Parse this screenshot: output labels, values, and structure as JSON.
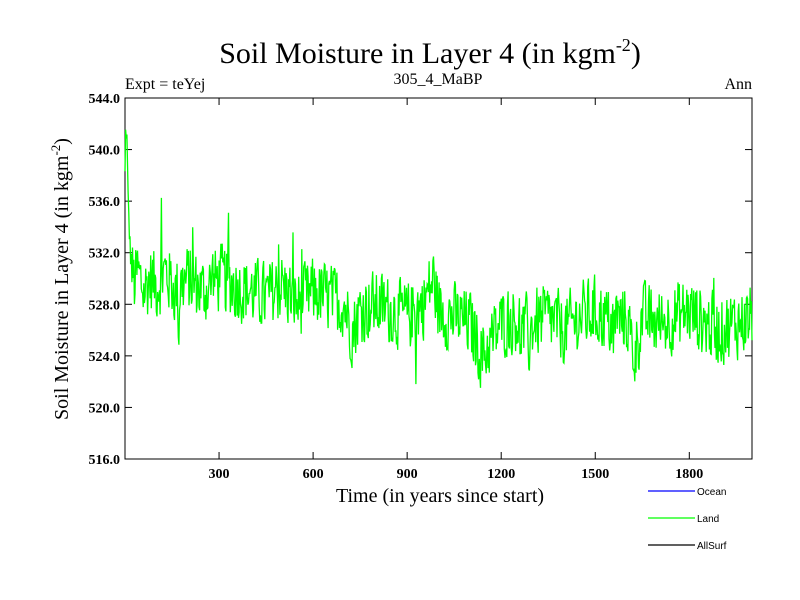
{
  "chart_data": {
    "type": "line",
    "title": "Soil Moisture in Layer 4 (in kgm",
    "title_sup": "-2",
    "title_close": ")",
    "left_label": "Expt = teYej",
    "center_label": "305_4_MaBP",
    "right_label": "Ann",
    "xlabel": "Time (in years since start)",
    "ylabel": "Soil Moisture in Layer 4 (in kgm",
    "ylabel_sup": "-2",
    "ylabel_close": ")",
    "xlim": [
      0,
      2000
    ],
    "ylim": [
      516.0,
      544.0
    ],
    "xticks": [
      300,
      600,
      900,
      1200,
      1500,
      1800
    ],
    "xtick_labels": [
      "300",
      "600",
      "900",
      "1200",
      "1500",
      "1800"
    ],
    "yticks": [
      516,
      520,
      524,
      528,
      532,
      536,
      540,
      544
    ],
    "ytick_labels": [
      "516.0",
      "520.0",
      "524.0",
      "528.0",
      "532.0",
      "536.0",
      "540.0",
      "544.0"
    ],
    "legend": [
      {
        "name": "Ocean",
        "color": "#0000ff"
      },
      {
        "name": "Land",
        "color": "#00ff00"
      },
      {
        "name": "AllSurf",
        "color": "#000000"
      }
    ],
    "series": [
      {
        "name": "Land",
        "color": "#00ff00",
        "x": [
          0,
          5,
          10,
          15,
          20,
          30,
          40,
          60,
          80,
          100,
          130,
          160,
          200,
          250,
          300,
          350,
          400,
          450,
          500,
          550,
          600,
          650,
          700,
          725,
          750,
          800,
          850,
          900,
          950,
          985,
          1000,
          1050,
          1100,
          1140,
          1200,
          1250,
          1290,
          1300,
          1350,
          1400,
          1450,
          1500,
          1550,
          1600,
          1625,
          1650,
          1700,
          1750,
          1800,
          1850,
          1900,
          1950,
          2000
        ],
        "y": [
          538.0,
          542.0,
          536.0,
          533.0,
          531.0,
          529.5,
          530.5,
          529.0,
          530.0,
          529.5,
          530.5,
          529.0,
          530.0,
          529.0,
          530.0,
          529.5,
          529.0,
          528.5,
          529.5,
          528.0,
          529.0,
          528.5,
          528.0,
          526.0,
          527.5,
          528.0,
          527.5,
          527.0,
          528.0,
          530.0,
          527.5,
          527.0,
          526.5,
          524.0,
          526.5,
          527.0,
          525.0,
          526.5,
          527.0,
          526.0,
          527.0,
          527.5,
          526.5,
          527.0,
          524.0,
          527.0,
          526.5,
          527.0,
          527.5,
          526.5,
          526.0,
          526.5,
          527.0
        ]
      }
    ]
  }
}
